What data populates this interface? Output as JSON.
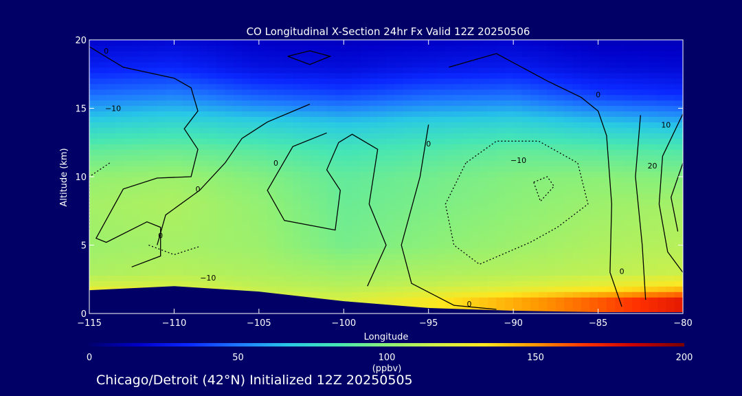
{
  "chart_data": {
    "type": "heatmap",
    "title": "CO Longitudinal X-Section 24hr  Fx Valid 12Z 20250506",
    "xlabel": "Longitude",
    "ylabel": "Altitude (km)",
    "xlim": [
      -115,
      -80
    ],
    "ylim": [
      0,
      20
    ],
    "x_ticks": [
      -115,
      -110,
      -105,
      -100,
      -95,
      -90,
      -85,
      -80
    ],
    "x_tick_labels": [
      "−115",
      "−110",
      "−105",
      "−100",
      "−95",
      "−90",
      "−85",
      "−80"
    ],
    "y_ticks": [
      0,
      5,
      10,
      15,
      20
    ],
    "y_tick_labels": [
      "0",
      "5",
      "10",
      "15",
      "20"
    ],
    "colorbar": {
      "label": "(ppbv)",
      "range": [
        0,
        200
      ],
      "ticks": [
        0,
        50,
        100,
        150,
        200
      ],
      "tick_labels": [
        "0",
        "50",
        "100",
        "150",
        "200"
      ],
      "colormap": [
        "#00006e",
        "#0000c8",
        "#0a28ff",
        "#1e78ff",
        "#28c8e6",
        "#46e6b4",
        "#8cf078",
        "#d2f046",
        "#ffe61e",
        "#ff9600",
        "#ff3200",
        "#c80000",
        "#780000"
      ]
    },
    "x": [
      -115,
      -110,
      -105,
      -100,
      -95,
      -90,
      -85,
      -80
    ],
    "altitude": [
      1,
      2,
      3,
      5,
      8,
      10,
      12,
      14,
      16,
      18,
      20
    ],
    "co_ppbv": [
      [
        150,
        140,
        120,
        118,
        130,
        145,
        160,
        175
      ],
      [
        118,
        118,
        112,
        110,
        114,
        118,
        125,
        135
      ],
      [
        108,
        110,
        108,
        105,
        108,
        110,
        112,
        115
      ],
      [
        104,
        106,
        104,
        95,
        100,
        104,
        108,
        110
      ],
      [
        106,
        108,
        102,
        92,
        96,
        100,
        104,
        106
      ],
      [
        102,
        104,
        98,
        90,
        94,
        98,
        100,
        98
      ],
      [
        90,
        92,
        88,
        82,
        86,
        90,
        88,
        86
      ],
      [
        70,
        74,
        70,
        66,
        70,
        72,
        66,
        62
      ],
      [
        48,
        52,
        44,
        40,
        46,
        48,
        38,
        34
      ],
      [
        30,
        32,
        24,
        22,
        26,
        28,
        22,
        20
      ],
      [
        18,
        20,
        16,
        15,
        16,
        18,
        14,
        14
      ]
    ],
    "surface_altitude_km": [
      1.7,
      2.0,
      1.6,
      0.9,
      0.4,
      0.2,
      0.1,
      0.1
    ],
    "contour_labels": [
      "0",
      "0",
      "0",
      "0",
      "0",
      "0",
      "0",
      "0",
      "−10",
      "−10",
      "−10",
      "10",
      "20"
    ]
  },
  "footer": {
    "caption": "Chicago/Detroit (42°N) Initialized 12Z 20250505"
  }
}
